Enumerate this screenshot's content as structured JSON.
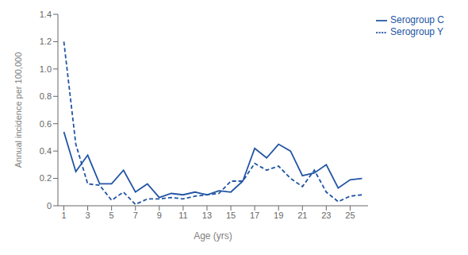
{
  "chart_data": {
    "type": "line",
    "xlabel": "Age (yrs)",
    "ylabel": "Annual incidence per 100,000",
    "x": [
      1,
      2,
      3,
      4,
      5,
      6,
      7,
      8,
      9,
      10,
      11,
      12,
      13,
      14,
      15,
      16,
      17,
      18,
      19,
      20,
      21,
      22,
      23,
      24,
      25,
      26
    ],
    "xlim": [
      0.5,
      26.5
    ],
    "xticks": [
      1,
      3,
      5,
      7,
      9,
      11,
      13,
      15,
      17,
      19,
      21,
      23,
      25
    ],
    "ylim": [
      0,
      1.4
    ],
    "yticks": [
      0,
      0.2,
      0.4,
      0.6,
      0.8,
      {
        "value": 1.0,
        "label": "1.0"
      },
      1.2,
      1.4
    ],
    "grid": false,
    "legend": "upper right",
    "series": [
      {
        "name": "Serogroup C",
        "color": "#2255A4",
        "line_style": "solid",
        "values": [
          0.54,
          0.25,
          0.37,
          0.16,
          0.16,
          0.26,
          0.1,
          0.16,
          0.06,
          0.09,
          0.08,
          0.1,
          0.08,
          0.11,
          0.1,
          0.18,
          0.42,
          0.35,
          0.45,
          0.4,
          0.22,
          0.24,
          0.3,
          0.13,
          0.19,
          0.2
        ]
      },
      {
        "name": "Serogroup Y",
        "color": "#2255A4",
        "line_style": "dashed",
        "values": [
          1.2,
          0.45,
          0.16,
          0.15,
          0.04,
          0.1,
          0.01,
          0.05,
          0.05,
          0.06,
          0.05,
          0.07,
          0.08,
          0.09,
          0.18,
          0.18,
          0.31,
          0.26,
          0.29,
          0.2,
          0.14,
          0.26,
          0.1,
          0.03,
          0.07,
          0.08
        ]
      }
    ]
  }
}
